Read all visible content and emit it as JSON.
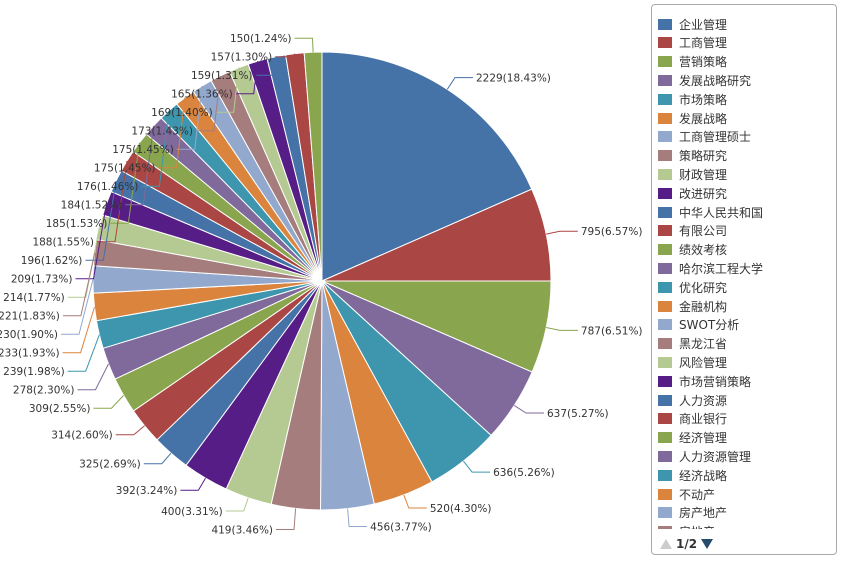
{
  "colors": [
    "#4572a7",
    "#aa4643",
    "#89a54e",
    "#80699b",
    "#3d96ae",
    "#db843d",
    "#92a8cd",
    "#a47d7c",
    "#b5ca92",
    "#571d87"
  ],
  "chart_data": {
    "type": "pie",
    "slices": [
      {
        "name": "企业管理",
        "value": 2229,
        "label": "2229(18.43%)"
      },
      {
        "name": "工商管理",
        "value": 795,
        "label": "795(6.57%)"
      },
      {
        "name": "营销策略",
        "value": 787,
        "label": "787(6.51%)"
      },
      {
        "name": "发展战略研究",
        "value": 637,
        "label": "637(5.27%)"
      },
      {
        "name": "市场策略",
        "value": 636,
        "label": "636(5.26%)"
      },
      {
        "name": "发展战略",
        "value": 520,
        "label": "520(4.30%)"
      },
      {
        "name": "工商管理硕士",
        "value": 456,
        "label": "456(3.77%)"
      },
      {
        "name": "策略研究",
        "value": 419,
        "label": "419(3.46%)"
      },
      {
        "name": "财政管理",
        "value": 400,
        "label": "400(3.31%)"
      },
      {
        "name": "改进研究",
        "value": 392,
        "label": "392(3.24%)"
      },
      {
        "name": "中华人民共和国",
        "value": 325,
        "label": "325(2.69%)"
      },
      {
        "name": "有限公司",
        "value": 314,
        "label": "314(2.60%)"
      },
      {
        "name": "绩效考核",
        "value": 309,
        "label": "309(2.55%)"
      },
      {
        "name": "哈尔滨工程大学",
        "value": 278,
        "label": "278(2.30%)"
      },
      {
        "name": "优化研究",
        "value": 239,
        "label": "239(1.98%)"
      },
      {
        "name": "金融机构",
        "value": 233,
        "label": "233(1.93%)"
      },
      {
        "name": "SWOT分析",
        "value": 230,
        "label": "230(1.90%)"
      },
      {
        "name": "黑龙江省",
        "value": 221,
        "label": "221(1.83%)"
      },
      {
        "name": "风险管理",
        "value": 214,
        "label": "214(1.77%)"
      },
      {
        "name": "市场营销策略",
        "value": 209,
        "label": "209(1.73%)"
      },
      {
        "name": "人力资源",
        "value": 196,
        "label": "196(1.62%)"
      },
      {
        "name": "商业银行",
        "value": 188,
        "label": "188(1.55%)"
      },
      {
        "name": "经济管理",
        "value": 185,
        "label": "185(1.53%)"
      },
      {
        "name": "人力资源管理",
        "value": 184,
        "label": "184(1.52%)"
      },
      {
        "name": "经济战略",
        "value": 176,
        "label": "176(1.46%)"
      },
      {
        "name": "不动产",
        "value": 175,
        "label": "175(1.45%)"
      },
      {
        "name": "房产地产",
        "value": 175,
        "label": "175(1.45%)"
      },
      {
        "name": "房地产",
        "value": 173,
        "label": "173(1.43%)"
      },
      {
        "name": "",
        "value": 169,
        "label": "169(1.40%)"
      },
      {
        "name": "",
        "value": 165,
        "label": "165(1.36%)"
      },
      {
        "name": "",
        "value": 159,
        "label": "159(1.31%)"
      },
      {
        "name": "",
        "value": 157,
        "label": "157(1.30%)"
      },
      {
        "name": "",
        "value": 150,
        "label": "150(1.24%)"
      }
    ],
    "legend": {
      "placement": "right",
      "page": "1/2"
    }
  }
}
